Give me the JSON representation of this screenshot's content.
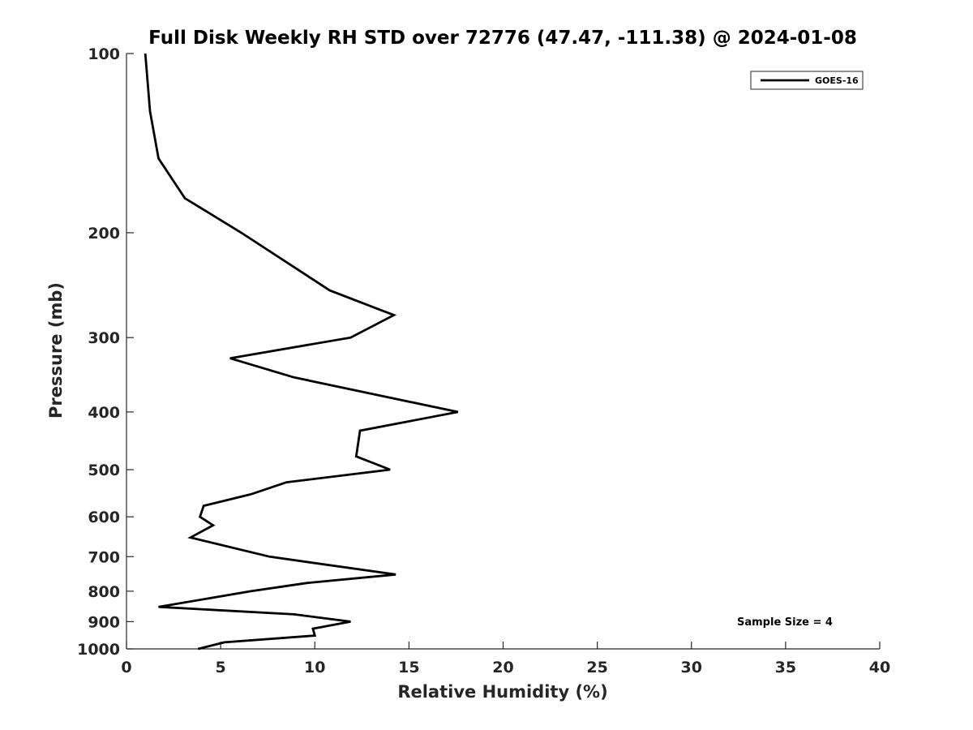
{
  "chart_data": {
    "type": "line",
    "title": "Full Disk Weekly RH STD over 72776 (47.47, -111.38) @ 2024-01-08",
    "xlabel": "Relative Humidity (%)",
    "ylabel": "Pressure (mb)",
    "xlim": [
      0,
      40
    ],
    "ylim": [
      100,
      1000
    ],
    "y_scale": "log",
    "y_reversed": true,
    "x_ticks": [
      0,
      5,
      10,
      15,
      20,
      25,
      30,
      35,
      40
    ],
    "y_ticks": [
      100,
      200,
      300,
      400,
      500,
      600,
      700,
      800,
      900,
      1000
    ],
    "grid": false,
    "legend_position": "top-right",
    "line_color": "#000000",
    "series": [
      {
        "name": "GOES-16",
        "points": [
          {
            "x": 1.0,
            "y": 100
          },
          {
            "x": 1.25,
            "y": 125
          },
          {
            "x": 1.7,
            "y": 150
          },
          {
            "x": 3.1,
            "y": 175
          },
          {
            "x": 6.1,
            "y": 200
          },
          {
            "x": 10.8,
            "y": 250
          },
          {
            "x": 14.2,
            "y": 275
          },
          {
            "x": 11.9,
            "y": 300
          },
          {
            "x": 5.5,
            "y": 325
          },
          {
            "x": 8.9,
            "y": 350
          },
          {
            "x": 17.6,
            "y": 400
          },
          {
            "x": 12.4,
            "y": 430
          },
          {
            "x": 12.2,
            "y": 475
          },
          {
            "x": 14.0,
            "y": 500
          },
          {
            "x": 8.5,
            "y": 525
          },
          {
            "x": 6.6,
            "y": 550
          },
          {
            "x": 4.1,
            "y": 575
          },
          {
            "x": 3.9,
            "y": 600
          },
          {
            "x": 4.6,
            "y": 620
          },
          {
            "x": 3.4,
            "y": 650
          },
          {
            "x": 7.6,
            "y": 700
          },
          {
            "x": 14.3,
            "y": 750
          },
          {
            "x": 9.6,
            "y": 775
          },
          {
            "x": 6.6,
            "y": 800
          },
          {
            "x": 1.7,
            "y": 850
          },
          {
            "x": 8.9,
            "y": 875
          },
          {
            "x": 11.9,
            "y": 900
          },
          {
            "x": 9.9,
            "y": 925
          },
          {
            "x": 10.0,
            "y": 950
          },
          {
            "x": 5.2,
            "y": 975
          },
          {
            "x": 3.8,
            "y": 1000
          }
        ]
      }
    ],
    "annotation": "Sample Size = 4"
  }
}
